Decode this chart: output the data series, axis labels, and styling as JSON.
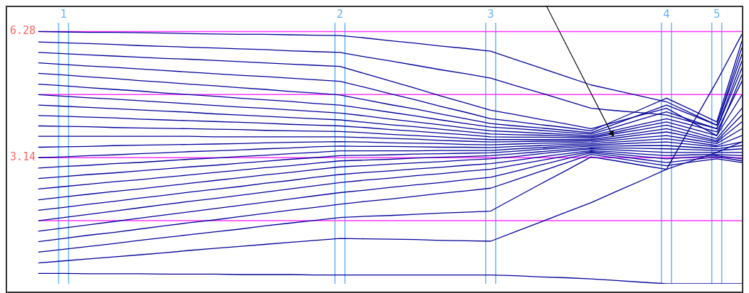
{
  "chart_data": {
    "type": "line",
    "categories": [
      null,
      "1",
      null,
      null,
      null,
      null,
      null,
      null,
      null,
      null,
      null,
      null,
      "2",
      null,
      null,
      null,
      null,
      null,
      "3",
      null,
      null,
      null,
      null,
      null,
      null,
      "4",
      null,
      "5",
      null
    ],
    "ylim": [
      0,
      6.5
    ],
    "yticks": [
      {
        "value": 1.57,
        "label": null
      },
      3.14,
      {
        "value": 4.71,
        "label": null
      },
      6.28
    ],
    "grid": true,
    "legend": false,
    "marker": "none",
    "line_style": "solid",
    "series": [
      {
        "color": "#000099",
        "values": [
          6.28,
          6.27,
          6.26,
          6.26,
          6.25,
          6.24,
          6.23,
          6.22,
          6.21,
          6.21,
          6.2,
          6.19,
          6.18,
          6.12,
          6.05,
          5.99,
          5.92,
          5.86,
          5.79,
          5.58,
          5.37,
          5.16,
          4.95,
          4.81,
          4.67,
          4.53,
          4.24,
          3.95,
          5.88
        ]
      },
      {
        "color": "#000099",
        "values": [
          6.02,
          6.0,
          5.98,
          5.96,
          5.93,
          5.91,
          5.89,
          5.87,
          5.85,
          5.83,
          5.8,
          5.78,
          5.76,
          5.65,
          5.55,
          5.44,
          5.33,
          5.23,
          5.12,
          4.93,
          4.75,
          4.56,
          4.37,
          4.31,
          4.26,
          4.2,
          4.03,
          3.86,
          5.54
        ]
      },
      {
        "color": "#000099",
        "values": [
          5.76,
          5.73,
          5.7,
          5.67,
          5.64,
          5.61,
          5.59,
          5.56,
          5.53,
          5.5,
          5.47,
          5.44,
          5.41,
          5.23,
          5.05,
          4.87,
          4.68,
          4.5,
          4.32,
          4.21,
          4.09,
          3.98,
          3.86,
          4.03,
          4.2,
          4.37,
          4.03,
          3.69,
          5.2
        ]
      },
      {
        "color": "#000099",
        "values": [
          5.5,
          5.46,
          5.42,
          5.39,
          5.35,
          5.31,
          5.27,
          5.23,
          5.19,
          5.16,
          5.12,
          5.08,
          5.04,
          4.89,
          4.73,
          4.58,
          4.42,
          4.27,
          4.11,
          4.04,
          3.96,
          3.89,
          3.81,
          4.08,
          4.35,
          4.62,
          4.33,
          4.03,
          6.04
        ]
      },
      {
        "color": "#000099",
        "values": [
          5.24,
          5.2,
          5.15,
          5.11,
          5.06,
          5.02,
          4.97,
          4.93,
          4.88,
          4.84,
          4.79,
          4.75,
          4.7,
          4.58,
          4.46,
          4.35,
          4.23,
          4.11,
          3.99,
          3.93,
          3.88,
          3.82,
          3.76,
          3.99,
          4.22,
          4.45,
          4.2,
          3.95,
          5.71
        ]
      },
      {
        "color": "#000099",
        "values": [
          4.97,
          4.93,
          4.88,
          4.84,
          4.8,
          4.75,
          4.71,
          4.67,
          4.62,
          4.58,
          4.54,
          4.49,
          4.45,
          4.36,
          4.27,
          4.18,
          4.08,
          3.99,
          3.9,
          3.86,
          3.82,
          3.77,
          3.73,
          3.91,
          4.1,
          4.28,
          4.07,
          3.86,
          5.37
        ]
      },
      {
        "color": "#000099",
        "values": [
          4.71,
          4.67,
          4.63,
          4.6,
          4.56,
          4.52,
          4.48,
          4.44,
          4.4,
          4.37,
          4.33,
          4.29,
          4.25,
          4.18,
          4.1,
          4.03,
          3.96,
          3.88,
          3.81,
          3.78,
          3.75,
          3.72,
          3.69,
          3.83,
          3.97,
          4.11,
          3.95,
          3.78,
          5.04
        ]
      },
      {
        "color": "#000099",
        "values": [
          4.45,
          4.42,
          4.39,
          4.36,
          4.33,
          4.3,
          4.27,
          4.23,
          4.2,
          4.17,
          4.14,
          4.11,
          4.08,
          4.02,
          3.96,
          3.91,
          3.85,
          3.79,
          3.73,
          3.71,
          3.7,
          3.68,
          3.66,
          3.78,
          3.91,
          4.03,
          3.86,
          3.69,
          4.7
        ]
      },
      {
        "color": "#000099",
        "values": [
          4.19,
          4.17,
          4.15,
          4.13,
          4.1,
          4.08,
          4.06,
          4.04,
          4.02,
          4.0,
          3.97,
          3.95,
          3.93,
          3.89,
          3.84,
          3.8,
          3.75,
          3.71,
          3.66,
          3.65,
          3.65,
          3.64,
          3.63,
          3.74,
          3.84,
          3.95,
          3.78,
          3.61,
          4.37
        ]
      },
      {
        "color": "#000099",
        "values": [
          3.93,
          3.92,
          3.91,
          3.89,
          3.88,
          3.87,
          3.86,
          3.85,
          3.84,
          3.82,
          3.81,
          3.8,
          3.79,
          3.76,
          3.72,
          3.69,
          3.66,
          3.62,
          3.59,
          3.59,
          3.59,
          3.59,
          3.59,
          3.68,
          3.77,
          3.86,
          3.71,
          3.56,
          4.2
        ]
      },
      {
        "color": "#000099",
        "values": [
          3.67,
          3.67,
          3.67,
          3.67,
          3.67,
          3.67,
          3.67,
          3.66,
          3.66,
          3.66,
          3.66,
          3.66,
          3.66,
          3.64,
          3.62,
          3.6,
          3.57,
          3.55,
          3.53,
          3.54,
          3.55,
          3.55,
          3.56,
          3.63,
          3.71,
          3.78,
          3.66,
          3.53,
          4.03
        ]
      },
      {
        "color": "#000099",
        "values": [
          3.4,
          3.41,
          3.42,
          3.44,
          3.45,
          3.46,
          3.47,
          3.48,
          3.49,
          3.51,
          3.52,
          3.53,
          3.54,
          3.53,
          3.51,
          3.5,
          3.49,
          3.47,
          3.46,
          3.48,
          3.5,
          3.51,
          3.53,
          3.58,
          3.64,
          3.69,
          3.59,
          3.49,
          3.86
        ]
      },
      {
        "color": "#000099",
        "values": [
          3.14,
          3.16,
          3.19,
          3.21,
          3.24,
          3.26,
          3.29,
          3.31,
          3.33,
          3.36,
          3.38,
          3.41,
          3.43,
          3.42,
          3.42,
          3.41,
          3.4,
          3.4,
          3.39,
          3.42,
          3.44,
          3.47,
          3.49,
          3.53,
          3.57,
          3.61,
          3.53,
          3.44,
          3.69
        ]
      },
      {
        "color": "#000099",
        "values": [
          2.88,
          2.92,
          2.95,
          2.99,
          3.02,
          3.06,
          3.1,
          3.13,
          3.17,
          3.2,
          3.24,
          3.27,
          3.31,
          3.31,
          3.31,
          3.31,
          3.32,
          3.32,
          3.32,
          3.36,
          3.39,
          3.43,
          3.46,
          3.48,
          3.51,
          3.53,
          3.47,
          3.41,
          3.53
        ]
      },
      {
        "color": "#000099",
        "values": [
          2.62,
          2.67,
          2.72,
          2.76,
          2.81,
          2.86,
          2.91,
          2.95,
          3.0,
          3.05,
          3.1,
          3.14,
          3.19,
          3.2,
          3.21,
          3.23,
          3.24,
          3.25,
          3.26,
          3.3,
          3.35,
          3.39,
          3.43,
          3.43,
          3.44,
          3.44,
          3.4,
          3.36,
          3.44
        ]
      },
      {
        "color": "#000099",
        "values": [
          2.36,
          2.42,
          2.48,
          2.54,
          2.59,
          2.65,
          2.71,
          2.77,
          2.83,
          2.89,
          2.94,
          3.0,
          3.06,
          3.08,
          3.1,
          3.13,
          3.15,
          3.17,
          3.19,
          3.24,
          3.29,
          3.34,
          3.39,
          3.38,
          3.37,
          3.36,
          3.34,
          3.32,
          3.36
        ]
      },
      {
        "color": "#000099",
        "values": [
          2.09,
          2.16,
          2.23,
          2.3,
          2.36,
          2.43,
          2.5,
          2.57,
          2.64,
          2.71,
          2.77,
          2.84,
          2.91,
          2.94,
          2.98,
          3.01,
          3.04,
          3.08,
          3.11,
          3.17,
          3.24,
          3.3,
          3.36,
          3.33,
          3.3,
          3.27,
          3.27,
          3.27,
          3.27
        ]
      },
      {
        "color": "#000099",
        "values": [
          1.83,
          1.9,
          1.98,
          2.05,
          2.13,
          2.2,
          2.28,
          2.35,
          2.42,
          2.5,
          2.57,
          2.65,
          2.72,
          2.77,
          2.81,
          2.86,
          2.9,
          2.95,
          2.99,
          3.07,
          3.16,
          3.24,
          3.32,
          3.28,
          3.23,
          3.19,
          3.21,
          3.22,
          3.19
        ]
      },
      {
        "color": "#000099",
        "values": [
          1.57,
          1.65,
          1.73,
          1.81,
          1.89,
          1.97,
          2.05,
          2.12,
          2.2,
          2.28,
          2.36,
          2.44,
          2.52,
          2.58,
          2.63,
          2.69,
          2.74,
          2.8,
          2.85,
          2.96,
          3.07,
          3.18,
          3.29,
          3.23,
          3.17,
          3.11,
          3.15,
          3.19,
          3.11
        ]
      },
      {
        "color": "#000099",
        "values": [
          1.31,
          1.39,
          1.47,
          1.55,
          1.63,
          1.71,
          1.79,
          1.87,
          1.95,
          2.03,
          2.11,
          2.19,
          2.27,
          2.33,
          2.4,
          2.46,
          2.52,
          2.59,
          2.65,
          2.8,
          2.96,
          3.11,
          3.26,
          3.18,
          3.1,
          3.02,
          3.09,
          3.16,
          3.06
        ]
      },
      {
        "color": "#000099",
        "values": [
          1.05,
          1.13,
          1.21,
          1.28,
          1.36,
          1.44,
          1.52,
          1.59,
          1.67,
          1.75,
          1.83,
          1.9,
          1.98,
          2.05,
          2.11,
          2.18,
          2.25,
          2.31,
          2.38,
          2.59,
          2.8,
          3.01,
          3.22,
          3.13,
          3.03,
          2.94,
          3.03,
          3.11,
          3.02
        ]
      },
      {
        "color": "#000099",
        "values": [
          0.79,
          0.86,
          0.93,
          1.0,
          1.08,
          1.15,
          1.22,
          1.29,
          1.36,
          1.44,
          1.51,
          1.58,
          1.65,
          1.68,
          1.7,
          1.73,
          1.76,
          1.78,
          1.81,
          2.15,
          2.49,
          2.82,
          3.16,
          3.06,
          2.95,
          2.85,
          3.06,
          3.27,
          3.53
        ]
      },
      {
        "color": "#000099",
        "values": [
          0.52,
          0.57,
          0.62,
          0.67,
          0.72,
          0.77,
          0.83,
          0.88,
          0.93,
          0.98,
          1.03,
          1.08,
          1.13,
          1.12,
          1.11,
          1.1,
          1.08,
          1.07,
          1.06,
          1.3,
          1.54,
          1.78,
          2.02,
          2.3,
          2.57,
          2.85,
          3.95,
          5.04,
          6.21
        ]
      },
      {
        "color": "#000099",
        "values": [
          0.26,
          0.26,
          0.25,
          0.25,
          0.25,
          0.24,
          0.24,
          0.24,
          0.23,
          0.23,
          0.23,
          0.22,
          0.22,
          0.22,
          0.22,
          0.22,
          0.22,
          0.22,
          0.22,
          0.2,
          0.17,
          0.15,
          0.12,
          0.08,
          0.04,
          0,
          0,
          0,
          0
        ]
      }
    ]
  }
}
